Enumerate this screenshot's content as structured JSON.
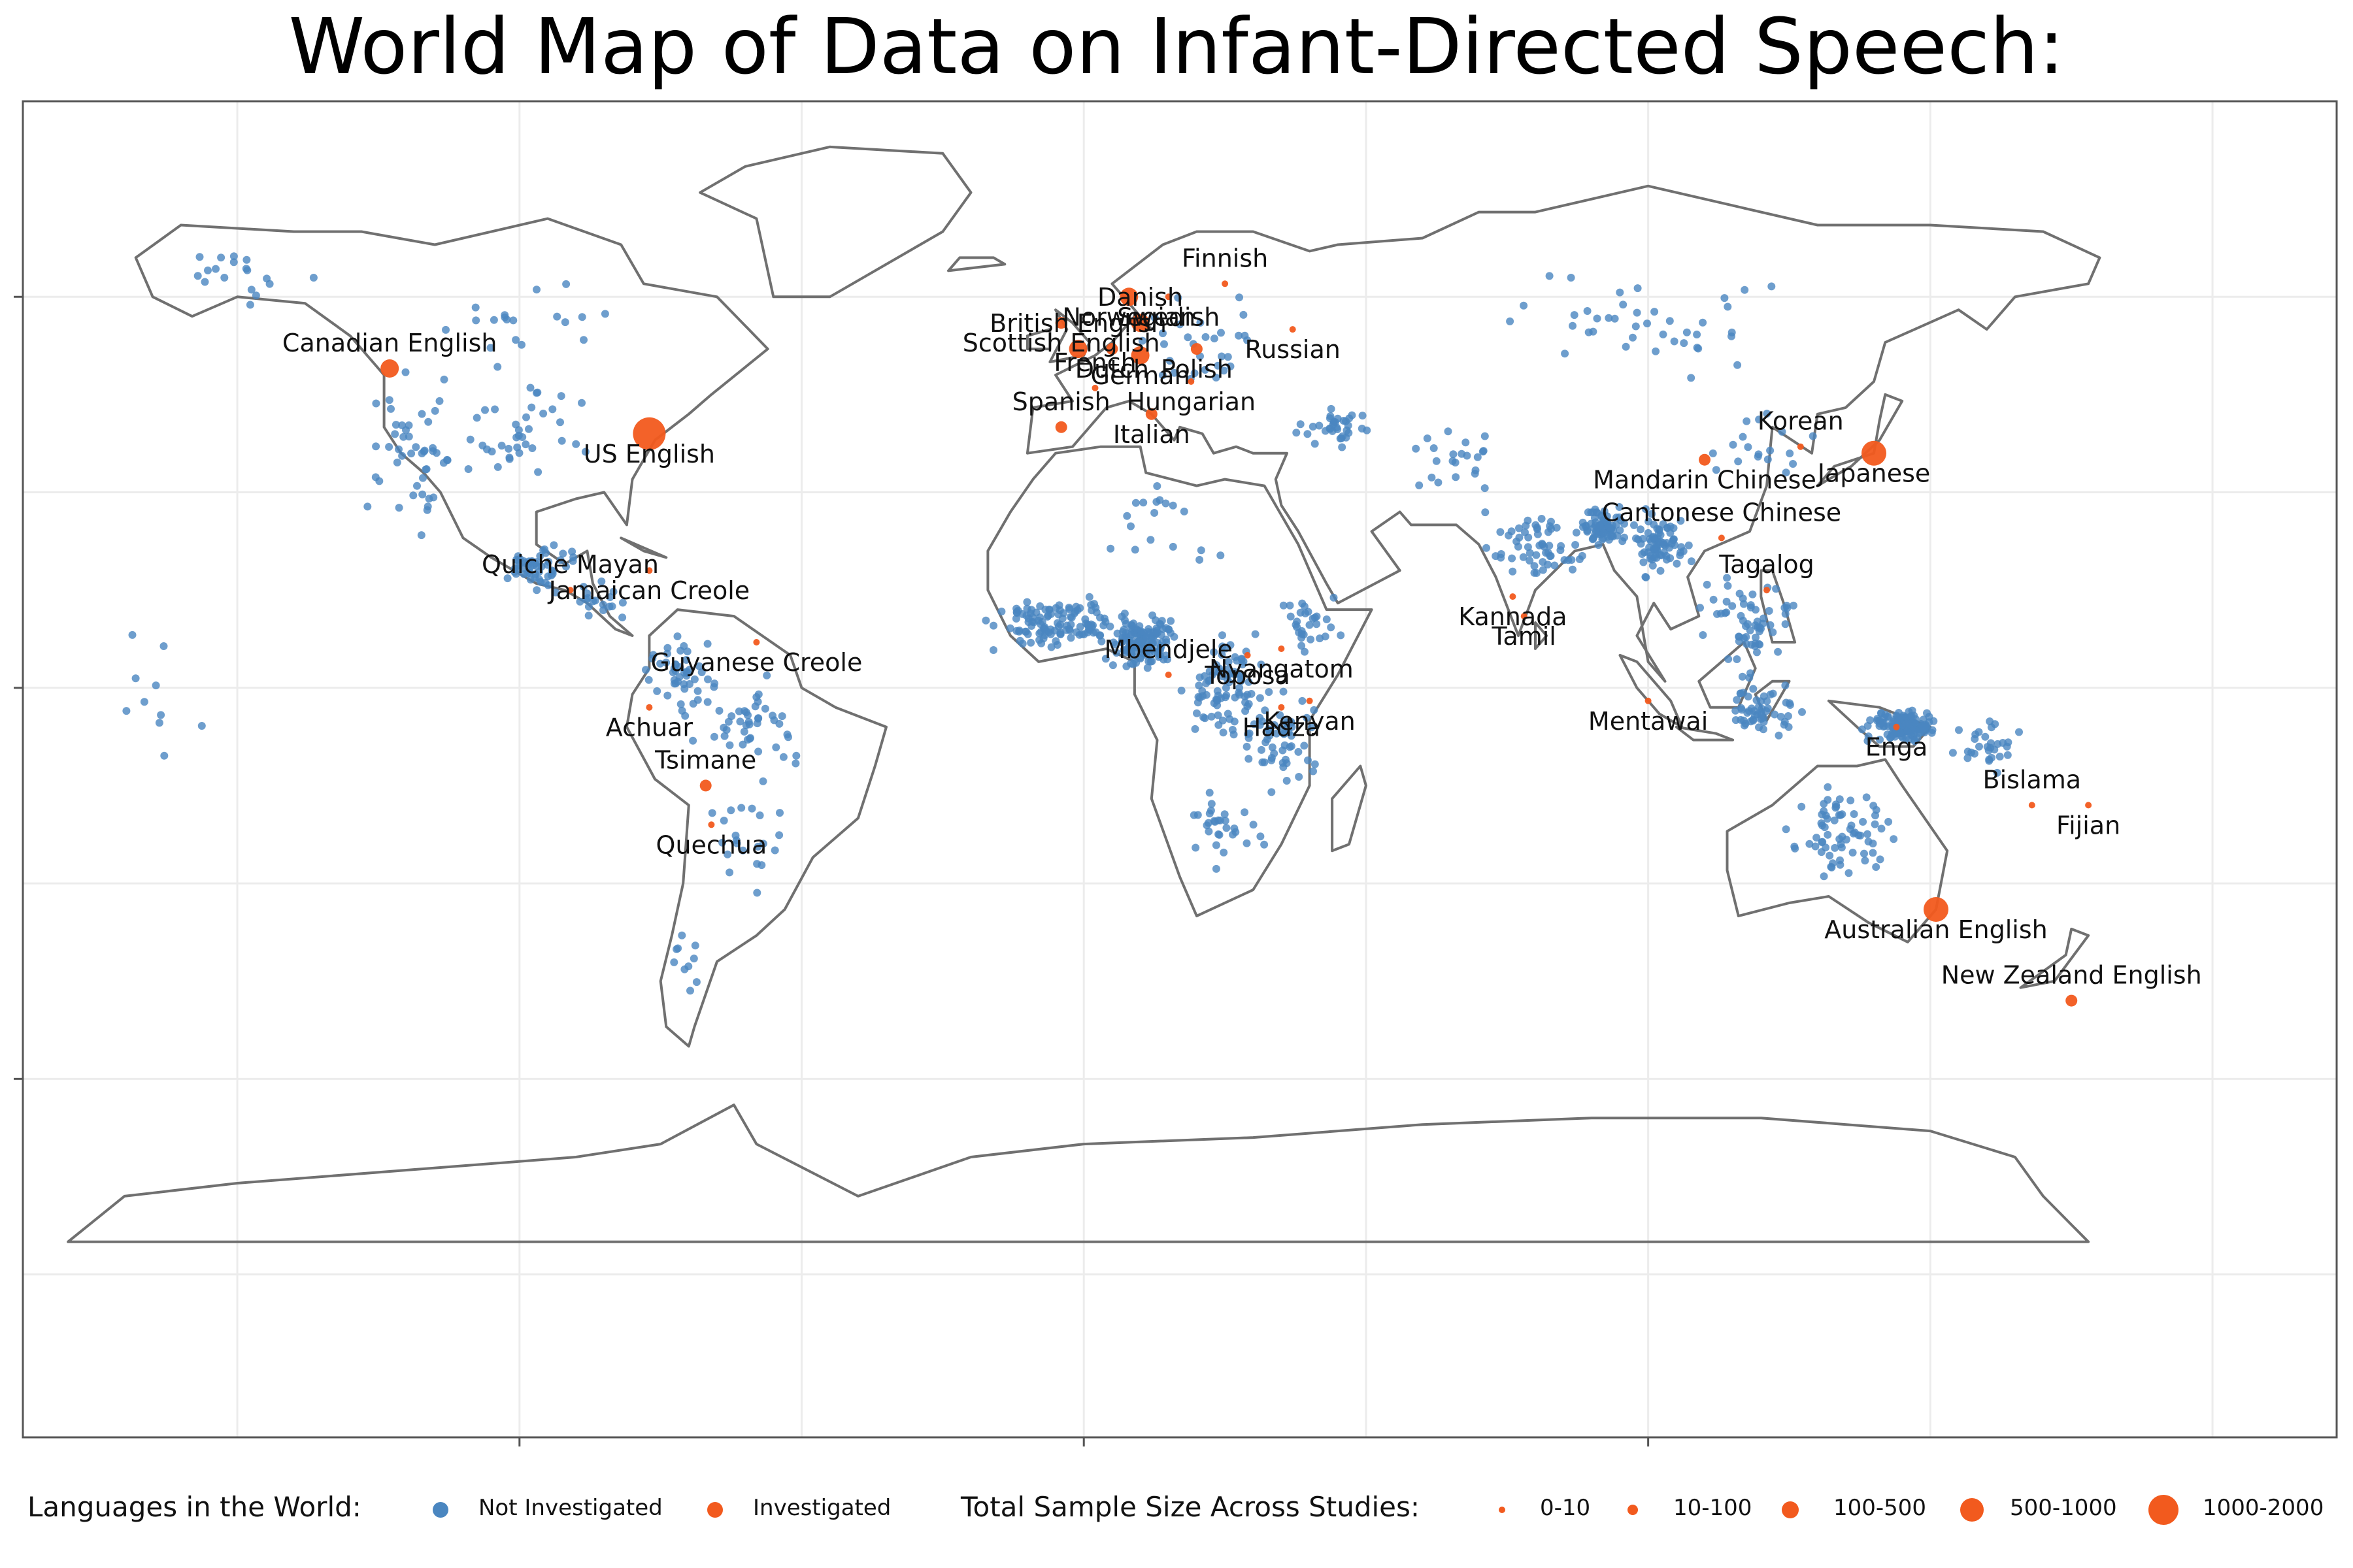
{
  "title": "World Map of Data on Infant-Directed Speech:",
  "colors": {
    "not_investigated": "#4a86c0",
    "investigated": "#f25a1e",
    "land_outline": "#707070",
    "grid": "#ececec",
    "frame": "#555555"
  },
  "legend": {
    "languages_title": "Languages in the World:",
    "languages_items": [
      "Not Investigated",
      "Investigated"
    ],
    "sample_title": "Total Sample Size Across Studies:",
    "sample_items": [
      "0-10",
      "10-100",
      "100-500",
      "500-1000",
      "1000-2000"
    ]
  },
  "chart_data": {
    "type": "scatter",
    "projection": "equirectangular",
    "xlim": [
      -180,
      180
    ],
    "ylim": [
      -90,
      90
    ],
    "x_tick_values": [
      -100,
      0,
      100
    ],
    "y_tick_values": [
      -60,
      0,
      60
    ],
    "series": [
      {
        "name": "Investigated",
        "points": [
          {
            "label": "Canadian English",
            "lon": -123,
            "lat": 49,
            "size": "100-500"
          },
          {
            "label": "US English",
            "lon": -77,
            "lat": 39,
            "size": "1000-2000"
          },
          {
            "label": "Jamaican Creole",
            "lon": -77,
            "lat": 18,
            "size": "0-10"
          },
          {
            "label": "Quiche Mayan",
            "lon": -91,
            "lat": 15,
            "size": "0-10"
          },
          {
            "label": "Guyanese Creole",
            "lon": -58,
            "lat": 7,
            "size": "0-10"
          },
          {
            "label": "Achuar",
            "lon": -77,
            "lat": -3,
            "size": "0-10"
          },
          {
            "label": "Tsimane",
            "lon": -67,
            "lat": -15,
            "size": "10-100"
          },
          {
            "label": "Quechua",
            "lon": -66,
            "lat": -21,
            "size": "0-10"
          },
          {
            "label": "Norwegian",
            "lon": 8,
            "lat": 60,
            "size": "100-500"
          },
          {
            "label": "Finnish",
            "lon": 25,
            "lat": 62,
            "size": "0-10"
          },
          {
            "label": "Swedish",
            "lon": 15,
            "lat": 60,
            "size": "0-10"
          },
          {
            "label": "Scottish English",
            "lon": -4,
            "lat": 56,
            "size": "10-100"
          },
          {
            "label": "Danish",
            "lon": 10,
            "lat": 56,
            "size": "100-500"
          },
          {
            "label": "Russian",
            "lon": 37,
            "lat": 55,
            "size": "0-10"
          },
          {
            "label": "Dutch",
            "lon": 5,
            "lat": 52,
            "size": "10-100"
          },
          {
            "label": "British English",
            "lon": -1,
            "lat": 52,
            "size": "100-500"
          },
          {
            "label": "German",
            "lon": 10,
            "lat": 51,
            "size": "100-500"
          },
          {
            "label": "Polish",
            "lon": 20,
            "lat": 52,
            "size": "10-100"
          },
          {
            "label": "French",
            "lon": 2,
            "lat": 46,
            "size": "0-10"
          },
          {
            "label": "Hungarian",
            "lon": 19,
            "lat": 47,
            "size": "0-10"
          },
          {
            "label": "Italian",
            "lon": 12,
            "lat": 42,
            "size": "10-100"
          },
          {
            "label": "Spanish",
            "lon": -4,
            "lat": 40,
            "size": "10-100"
          },
          {
            "label": "Nyangatom",
            "lon": 35,
            "lat": 6,
            "size": "0-10"
          },
          {
            "label": "Toposa",
            "lon": 29,
            "lat": 5,
            "size": "0-10"
          },
          {
            "label": "Mbendjele",
            "lon": 15,
            "lat": 2,
            "size": "0-10"
          },
          {
            "label": "Kenyan",
            "lon": 40,
            "lat": -2,
            "size": "0-10"
          },
          {
            "label": "Hadza",
            "lon": 35,
            "lat": -3,
            "size": "0-10"
          },
          {
            "label": "Korean",
            "lon": 127,
            "lat": 37,
            "size": "0-10"
          },
          {
            "label": "Japanese",
            "lon": 140,
            "lat": 36,
            "size": "500-1000"
          },
          {
            "label": "Mandarin Chinese",
            "lon": 110,
            "lat": 35,
            "size": "10-100"
          },
          {
            "label": "Cantonese Chinese",
            "lon": 113,
            "lat": 23,
            "size": "0-10"
          },
          {
            "label": "Kannada",
            "lon": 76,
            "lat": 14,
            "size": "0-10"
          },
          {
            "label": "Tamil",
            "lon": 78,
            "lat": 11,
            "size": "0-10"
          },
          {
            "label": "Tagalog",
            "lon": 121,
            "lat": 15,
            "size": "0-10"
          },
          {
            "label": "Mentawai",
            "lon": 100,
            "lat": -2,
            "size": "0-10"
          },
          {
            "label": "Enga",
            "lon": 144,
            "lat": -6,
            "size": "0-10"
          },
          {
            "label": "Bislama",
            "lon": 168,
            "lat": -18,
            "size": "0-10"
          },
          {
            "label": "Fijian",
            "lon": 178,
            "lat": -18,
            "size": "0-10"
          },
          {
            "label": "Australian English",
            "lon": 151,
            "lat": -34,
            "size": "500-1000"
          },
          {
            "label": "New Zealand English",
            "lon": 175,
            "lat": -48,
            "size": "10-100"
          }
        ]
      },
      {
        "name": "Not Investigated",
        "clusters": [
          {
            "lon": -120,
            "lat": 38,
            "spread": [
              8,
              12
            ],
            "n": 45
          },
          {
            "lon": -100,
            "lat": 40,
            "spread": [
              14,
              9
            ],
            "n": 40
          },
          {
            "lon": -150,
            "lat": 62,
            "spread": [
              12,
              5
            ],
            "n": 18
          },
          {
            "lon": -100,
            "lat": 58,
            "spread": [
              18,
              7
            ],
            "n": 18
          },
          {
            "lon": -96,
            "lat": 18,
            "spread": [
              7,
              4
            ],
            "n": 55
          },
          {
            "lon": -86,
            "lat": 13,
            "spread": [
              4,
              3
            ],
            "n": 18
          },
          {
            "lon": -72,
            "lat": 3,
            "spread": [
              6,
              7
            ],
            "n": 45
          },
          {
            "lon": -60,
            "lat": -5,
            "spread": [
              10,
              8
            ],
            "n": 45
          },
          {
            "lon": -60,
            "lat": -25,
            "spread": [
              8,
              10
            ],
            "n": 22
          },
          {
            "lon": -70,
            "lat": -42,
            "spread": [
              3,
              8
            ],
            "n": 10
          },
          {
            "lon": -5,
            "lat": 10,
            "spread": [
              12,
              4
            ],
            "n": 120
          },
          {
            "lon": 10,
            "lat": 7,
            "spread": [
              6,
              4
            ],
            "n": 140
          },
          {
            "lon": 25,
            "lat": 0,
            "spread": [
              8,
              8
            ],
            "n": 90
          },
          {
            "lon": 35,
            "lat": -8,
            "spread": [
              6,
              8
            ],
            "n": 55
          },
          {
            "lon": 25,
            "lat": -22,
            "spread": [
              7,
              6
            ],
            "n": 30
          },
          {
            "lon": 15,
            "lat": 25,
            "spread": [
              14,
              6
            ],
            "n": 18
          },
          {
            "lon": 40,
            "lat": 10,
            "spread": [
              5,
              5
            ],
            "n": 30
          },
          {
            "lon": 20,
            "lat": 52,
            "spread": [
              15,
              7
            ],
            "n": 30
          },
          {
            "lon": 45,
            "lat": 40,
            "spread": [
              6,
              3
            ],
            "n": 35
          },
          {
            "lon": 65,
            "lat": 35,
            "spread": [
              10,
              5
            ],
            "n": 22
          },
          {
            "lon": 80,
            "lat": 22,
            "spread": [
              8,
              6
            ],
            "n": 60
          },
          {
            "lon": 92,
            "lat": 25,
            "spread": [
              4,
              3
            ],
            "n": 70
          },
          {
            "lon": 102,
            "lat": 22,
            "spread": [
              6,
              5
            ],
            "n": 80
          },
          {
            "lon": 118,
            "lat": 10,
            "spread": [
              8,
              7
            ],
            "n": 60
          },
          {
            "lon": 120,
            "lat": -3,
            "spread": [
              8,
              4
            ],
            "n": 55
          },
          {
            "lon": 145,
            "lat": -6,
            "spread": [
              6,
              2.5
            ],
            "n": 120
          },
          {
            "lon": 135,
            "lat": -22,
            "spread": [
              9,
              7
            ],
            "n": 70
          },
          {
            "lon": 160,
            "lat": -9,
            "spread": [
              6,
              4
            ],
            "n": 30
          },
          {
            "lon": 100,
            "lat": 55,
            "spread": [
              30,
              8
            ],
            "n": 40
          },
          {
            "lon": 120,
            "lat": 38,
            "spread": [
              10,
              6
            ],
            "n": 18
          },
          {
            "lon": -165,
            "lat": 0,
            "spread": [
              10,
              10
            ],
            "n": 10
          }
        ]
      }
    ]
  }
}
